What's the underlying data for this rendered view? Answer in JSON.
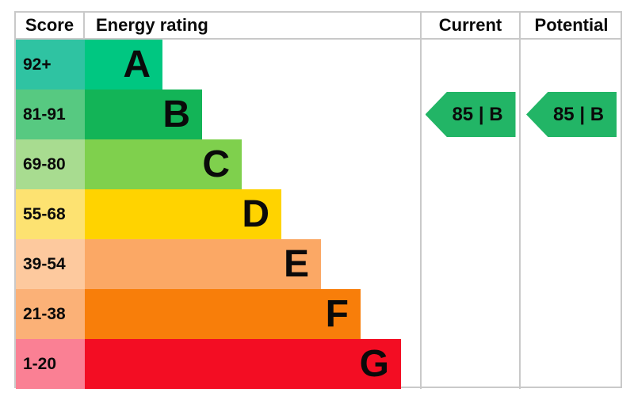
{
  "header": {
    "score": "Score",
    "rating": "Energy rating",
    "current": "Current",
    "potential": "Potential"
  },
  "bands": [
    {
      "letter": "A",
      "score": "92+",
      "bar_color": "#00c781",
      "score_bg": "#2fc3a2",
      "bar_width_pct": 23.2
    },
    {
      "letter": "B",
      "score": "81-91",
      "bar_color": "#13b457",
      "score_bg": "#57c981",
      "bar_width_pct": 35.0
    },
    {
      "letter": "C",
      "score": "69-80",
      "bar_color": "#7fd04d",
      "score_bg": "#a8dc90",
      "bar_width_pct": 46.8
    },
    {
      "letter": "D",
      "score": "55-68",
      "bar_color": "#ffd300",
      "score_bg": "#fde271",
      "bar_width_pct": 58.6
    },
    {
      "letter": "E",
      "score": "39-54",
      "bar_color": "#fba865",
      "score_bg": "#fdc99e",
      "bar_width_pct": 70.4
    },
    {
      "letter": "F",
      "score": "21-38",
      "bar_color": "#f87e0a",
      "score_bg": "#fbb177",
      "bar_width_pct": 82.3
    },
    {
      "letter": "G",
      "score": "1-20",
      "bar_color": "#f30d23",
      "score_bg": "#fa8094",
      "bar_width_pct": 94.3
    }
  ],
  "current": {
    "label": "85 | B",
    "value": 85,
    "band": "B",
    "band_index": 1,
    "arrow_color": "#22b566"
  },
  "potential": {
    "label": "85 | B",
    "value": 85,
    "band": "B",
    "band_index": 1,
    "arrow_color": "#22b566"
  },
  "border_color": "#c9c9c9",
  "chart_data": {
    "type": "bar",
    "title": "Energy rating",
    "categories": [
      "A",
      "B",
      "C",
      "D",
      "E",
      "F",
      "G"
    ],
    "score_ranges": [
      "92+",
      "81-91",
      "69-80",
      "55-68",
      "39-54",
      "21-38",
      "1-20"
    ],
    "bar_lengths_pct_of_column": [
      23.2,
      35.0,
      46.8,
      58.6,
      70.4,
      82.3,
      94.3
    ],
    "band_colors": [
      "#00c781",
      "#13b457",
      "#7fd04d",
      "#ffd300",
      "#fba865",
      "#f87e0a",
      "#f30d23"
    ],
    "score_cell_colors": [
      "#2fc3a2",
      "#57c981",
      "#a8dc90",
      "#fde271",
      "#fdc99e",
      "#fbb177",
      "#fa8094"
    ],
    "series": [
      {
        "name": "Current",
        "value": 85,
        "band": "B"
      },
      {
        "name": "Potential",
        "value": 85,
        "band": "B"
      }
    ],
    "legend_position": "none",
    "grid": false
  }
}
